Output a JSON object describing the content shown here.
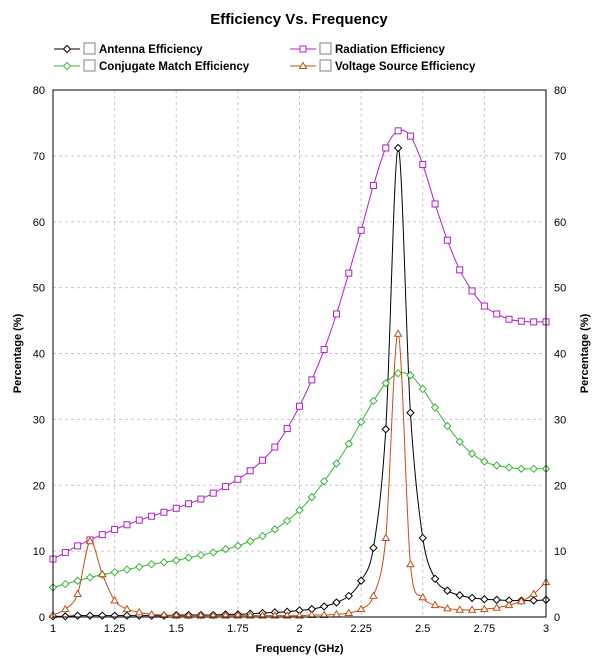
{
  "chart_data": {
    "type": "line",
    "title": "Efficiency Vs. Frequency",
    "xlabel": "Frequency (GHz)",
    "ylabel": "Percentage (%)",
    "ylabel_right": "Percentage (%)",
    "xlim": [
      1,
      3
    ],
    "ylim": [
      0,
      80
    ],
    "x_ticks": [
      "1",
      "1.25",
      "1.5",
      "1.75",
      "2",
      "2.25",
      "2.5",
      "2.75",
      "3"
    ],
    "y_ticks": [
      "0",
      "10",
      "20",
      "30",
      "40",
      "50",
      "60",
      "70",
      "80"
    ],
    "grid": true,
    "legend_position": "top",
    "series": [
      {
        "name": "Antenna Efficiency",
        "color": "#000000",
        "marker": "diamond",
        "x": [
          1,
          1.05,
          1.1,
          1.15,
          1.2,
          1.25,
          1.3,
          1.35,
          1.4,
          1.45,
          1.5,
          1.55,
          1.6,
          1.65,
          1.7,
          1.75,
          1.8,
          1.85,
          1.9,
          1.95,
          2,
          2.05,
          2.1,
          2.15,
          2.2,
          2.25,
          2.3,
          2.35,
          2.4,
          2.45,
          2.5,
          2.55,
          2.6,
          2.65,
          2.7,
          2.75,
          2.8,
          2.85,
          2.9,
          2.95,
          3
        ],
        "y": [
          0.1,
          0.1,
          0.2,
          0.2,
          0.2,
          0.2,
          0.2,
          0.2,
          0.2,
          0.2,
          0.3,
          0.3,
          0.3,
          0.3,
          0.4,
          0.4,
          0.5,
          0.6,
          0.7,
          0.8,
          1.0,
          1.2,
          1.6,
          2.2,
          3.2,
          5.5,
          10.5,
          28.5,
          71.2,
          31.0,
          12.0,
          5.8,
          4.0,
          3.3,
          2.9,
          2.7,
          2.6,
          2.5,
          2.5,
          2.5,
          2.6
        ]
      },
      {
        "name": "Radiation Efficiency",
        "color": "#b020c8",
        "marker": "square",
        "x": [
          1,
          1.05,
          1.1,
          1.15,
          1.2,
          1.25,
          1.3,
          1.35,
          1.4,
          1.45,
          1.5,
          1.55,
          1.6,
          1.65,
          1.7,
          1.75,
          1.8,
          1.85,
          1.9,
          1.95,
          2,
          2.05,
          2.1,
          2.15,
          2.2,
          2.25,
          2.3,
          2.35,
          2.4,
          2.45,
          2.5,
          2.55,
          2.6,
          2.65,
          2.7,
          2.75,
          2.8,
          2.85,
          2.9,
          2.95,
          3
        ],
        "y": [
          8.8,
          9.8,
          10.8,
          11.7,
          12.5,
          13.3,
          14.0,
          14.7,
          15.3,
          15.9,
          16.5,
          17.2,
          17.9,
          18.8,
          19.8,
          20.9,
          22.2,
          23.8,
          25.8,
          28.6,
          32.0,
          36.0,
          40.6,
          46.0,
          52.2,
          58.7,
          65.5,
          71.2,
          73.8,
          73.0,
          68.7,
          62.7,
          57.2,
          52.7,
          49.5,
          47.2,
          46.0,
          45.2,
          44.9,
          44.8,
          44.8
        ]
      },
      {
        "name": "Conjugate Match Efficiency",
        "color": "#3cb43c",
        "marker": "diamond",
        "x": [
          1,
          1.05,
          1.1,
          1.15,
          1.2,
          1.25,
          1.3,
          1.35,
          1.4,
          1.45,
          1.5,
          1.55,
          1.6,
          1.65,
          1.7,
          1.75,
          1.8,
          1.85,
          1.9,
          1.95,
          2,
          2.05,
          2.1,
          2.15,
          2.2,
          2.25,
          2.3,
          2.35,
          2.4,
          2.45,
          2.5,
          2.55,
          2.6,
          2.65,
          2.7,
          2.75,
          2.8,
          2.85,
          2.9,
          2.95,
          3
        ],
        "y": [
          4.5,
          5.0,
          5.5,
          6.0,
          6.4,
          6.8,
          7.2,
          7.6,
          8.0,
          8.3,
          8.6,
          9.0,
          9.4,
          9.8,
          10.3,
          10.8,
          11.5,
          12.3,
          13.3,
          14.6,
          16.2,
          18.2,
          20.6,
          23.3,
          26.3,
          29.6,
          32.8,
          35.5,
          37.0,
          36.7,
          34.6,
          31.8,
          29.0,
          26.6,
          24.8,
          23.6,
          23.0,
          22.7,
          22.5,
          22.5,
          22.5
        ]
      },
      {
        "name": "Voltage Source Efficiency",
        "color": "#c05018",
        "marker": "triangle",
        "x": [
          1,
          1.05,
          1.1,
          1.15,
          1.2,
          1.25,
          1.3,
          1.35,
          1.4,
          1.45,
          1.5,
          1.55,
          1.6,
          1.65,
          1.7,
          1.75,
          1.8,
          1.85,
          1.9,
          1.95,
          2,
          2.05,
          2.1,
          2.15,
          2.2,
          2.25,
          2.3,
          2.35,
          2.4,
          2.45,
          2.5,
          2.55,
          2.6,
          2.65,
          2.7,
          2.75,
          2.8,
          2.85,
          2.9,
          2.95,
          3
        ],
        "y": [
          0.3,
          1.2,
          3.5,
          11.5,
          6.5,
          2.5,
          1.2,
          0.7,
          0.4,
          0.3,
          0.2,
          0.2,
          0.2,
          0.2,
          0.2,
          0.2,
          0.2,
          0.2,
          0.2,
          0.2,
          0.2,
          0.3,
          0.3,
          0.4,
          0.6,
          1.2,
          3.2,
          12.0,
          43.0,
          8.0,
          3.0,
          1.8,
          1.3,
          1.1,
          1.1,
          1.2,
          1.4,
          1.8,
          2.4,
          3.5,
          5.3
        ]
      }
    ]
  }
}
